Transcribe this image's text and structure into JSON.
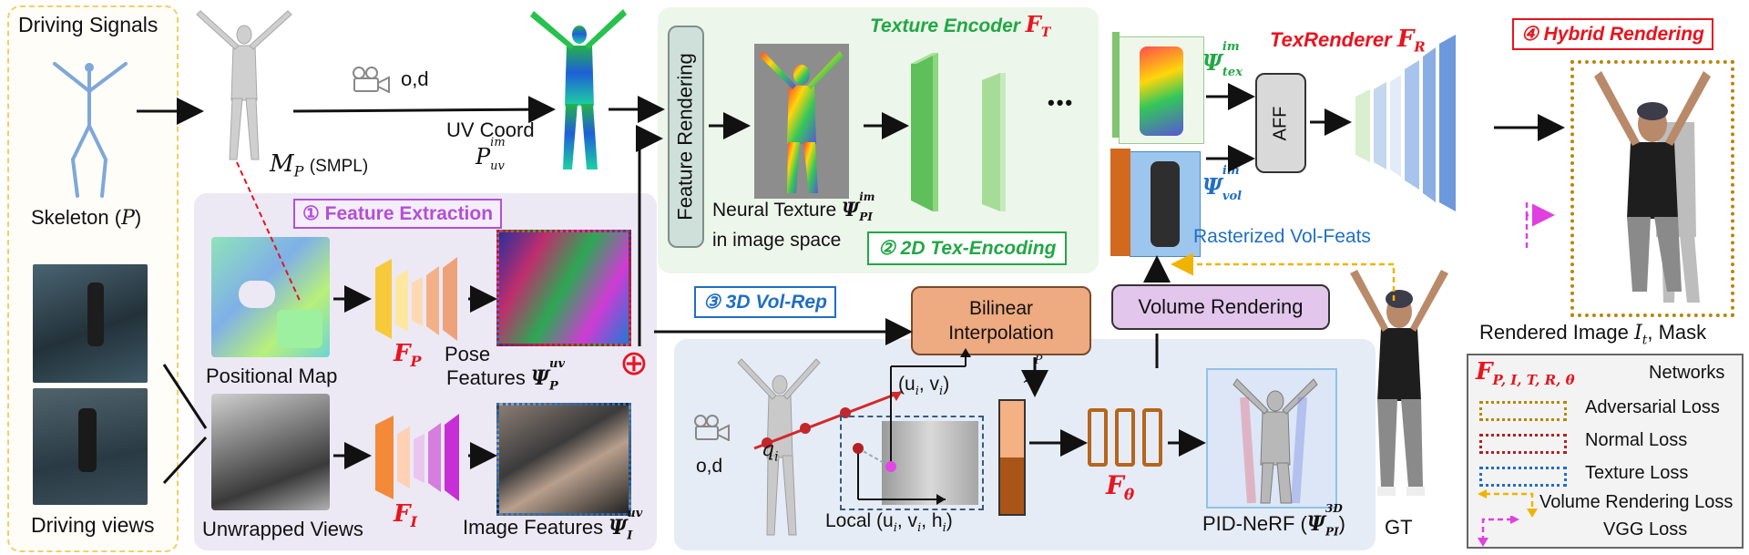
{
  "driving_panel": {
    "title": "Driving Signals",
    "skeleton_label": "Skeleton (",
    "skeleton_var": "P",
    "skeleton_close": ")",
    "views_label": "Driving views"
  },
  "smpl": {
    "label_var": "M",
    "label_sub": "P",
    "label_text": "(SMPL)"
  },
  "camera": {
    "label": "o,d"
  },
  "uv": {
    "label": "UV Coord",
    "var": "P",
    "sup": "im",
    "sub": "uv"
  },
  "feature_rendering": {
    "label": "Feature Rendering"
  },
  "texture_encoder": {
    "title": "Texture Encoder ",
    "title_var": "F",
    "title_sub": "T",
    "neural_texture_line1": "Neural Texture ",
    "neural_texture_var": "Ψ",
    "neural_texture_sup": "im",
    "neural_texture_sub": "PI",
    "neural_texture_line2": "in image space",
    "stage_label": "② 2D Tex-Encoding",
    "ellipsis": "•••"
  },
  "feature_extraction": {
    "title": "① Feature Extraction",
    "positional_map": "Positional Map",
    "unwrapped_views": "Unwrapped Views",
    "fp_var": "F",
    "fp_sub": "P",
    "fi_var": "F",
    "fi_sub": "I",
    "pose_features_line1": "Pose",
    "pose_features_line2": "Features ",
    "pose_var": "Ψ",
    "pose_sup": "uv",
    "pose_sub": "P",
    "image_features": "Image Features ",
    "image_var": "Ψ",
    "image_sup": "uv",
    "image_sub": "I",
    "oplus": "⊕"
  },
  "vol_rep": {
    "title": "③ 3D Vol-Rep",
    "bilinear": "Bilinear Interpolation",
    "bilinear_line1": "Bilinear",
    "bilinear_line2": "Interpolation",
    "uv_coord": "(u",
    "uv_i1": "i",
    "uv_mid": ", v",
    "uv_i2": "i",
    "uv_close": ")",
    "z_var": "z",
    "z_sub": "i",
    "z_sup": "P",
    "q_var": "q",
    "q_sub": "i",
    "cam_label": "o,d",
    "local_label": "Local (u",
    "local_rest": ", v",
    "local_h": ", h",
    "local_close": ")",
    "f_theta_var": "F",
    "f_theta_sub": "θ",
    "pid_nerf": "PID-NeRF (",
    "pid_var": "Ψ",
    "pid_sup": "3D",
    "pid_sub": "PI",
    "pid_close": ")"
  },
  "volume_rendering": {
    "label": "Volume Rendering",
    "rasterized": "Rasterized Vol-Feats"
  },
  "tex_renderer": {
    "title": "TexRenderer ",
    "title_var": "F",
    "title_sub": "R",
    "psi_tex_var": "Ψ",
    "psi_tex_sup": "im",
    "psi_tex_sub": "tex",
    "psi_vol_var": "Ψ",
    "psi_vol_sup": "im",
    "psi_vol_sub": "vol",
    "aff": "AFF"
  },
  "hybrid": {
    "title": "④ Hybrid Rendering",
    "rendered_label": "Rendered Image ",
    "rendered_var": "I",
    "rendered_sub": "t",
    "rendered_rest": ", Mask",
    "gt": "GT"
  },
  "legend": {
    "networks_var": "F",
    "networks_sub": "P, I, T, R, θ",
    "networks_label": "Networks",
    "items": [
      {
        "label": "Adversarial Loss",
        "color": "#b8860b",
        "style": "dotted-box"
      },
      {
        "label": "Normal Loss",
        "color": "#b22222",
        "style": "dotted-box"
      },
      {
        "label": "Texture Loss",
        "color": "#1f6fc5",
        "style": "dotted-box"
      },
      {
        "label": "Volume Rendering Loss",
        "color": "#f0b400",
        "style": "dashed-arrow"
      },
      {
        "label": "VGG Loss",
        "color": "#e040e0",
        "style": "dashed-arrow"
      }
    ]
  },
  "colors": {
    "green_title": "#21a845",
    "red_title": "#e8141e",
    "purple_title": "#b44fd6",
    "blue_title": "#1f6fc5",
    "feature_panel": "#ece9f5",
    "tex_panel": "#edf6ea",
    "vol_panel": "#e6ecf6"
  }
}
